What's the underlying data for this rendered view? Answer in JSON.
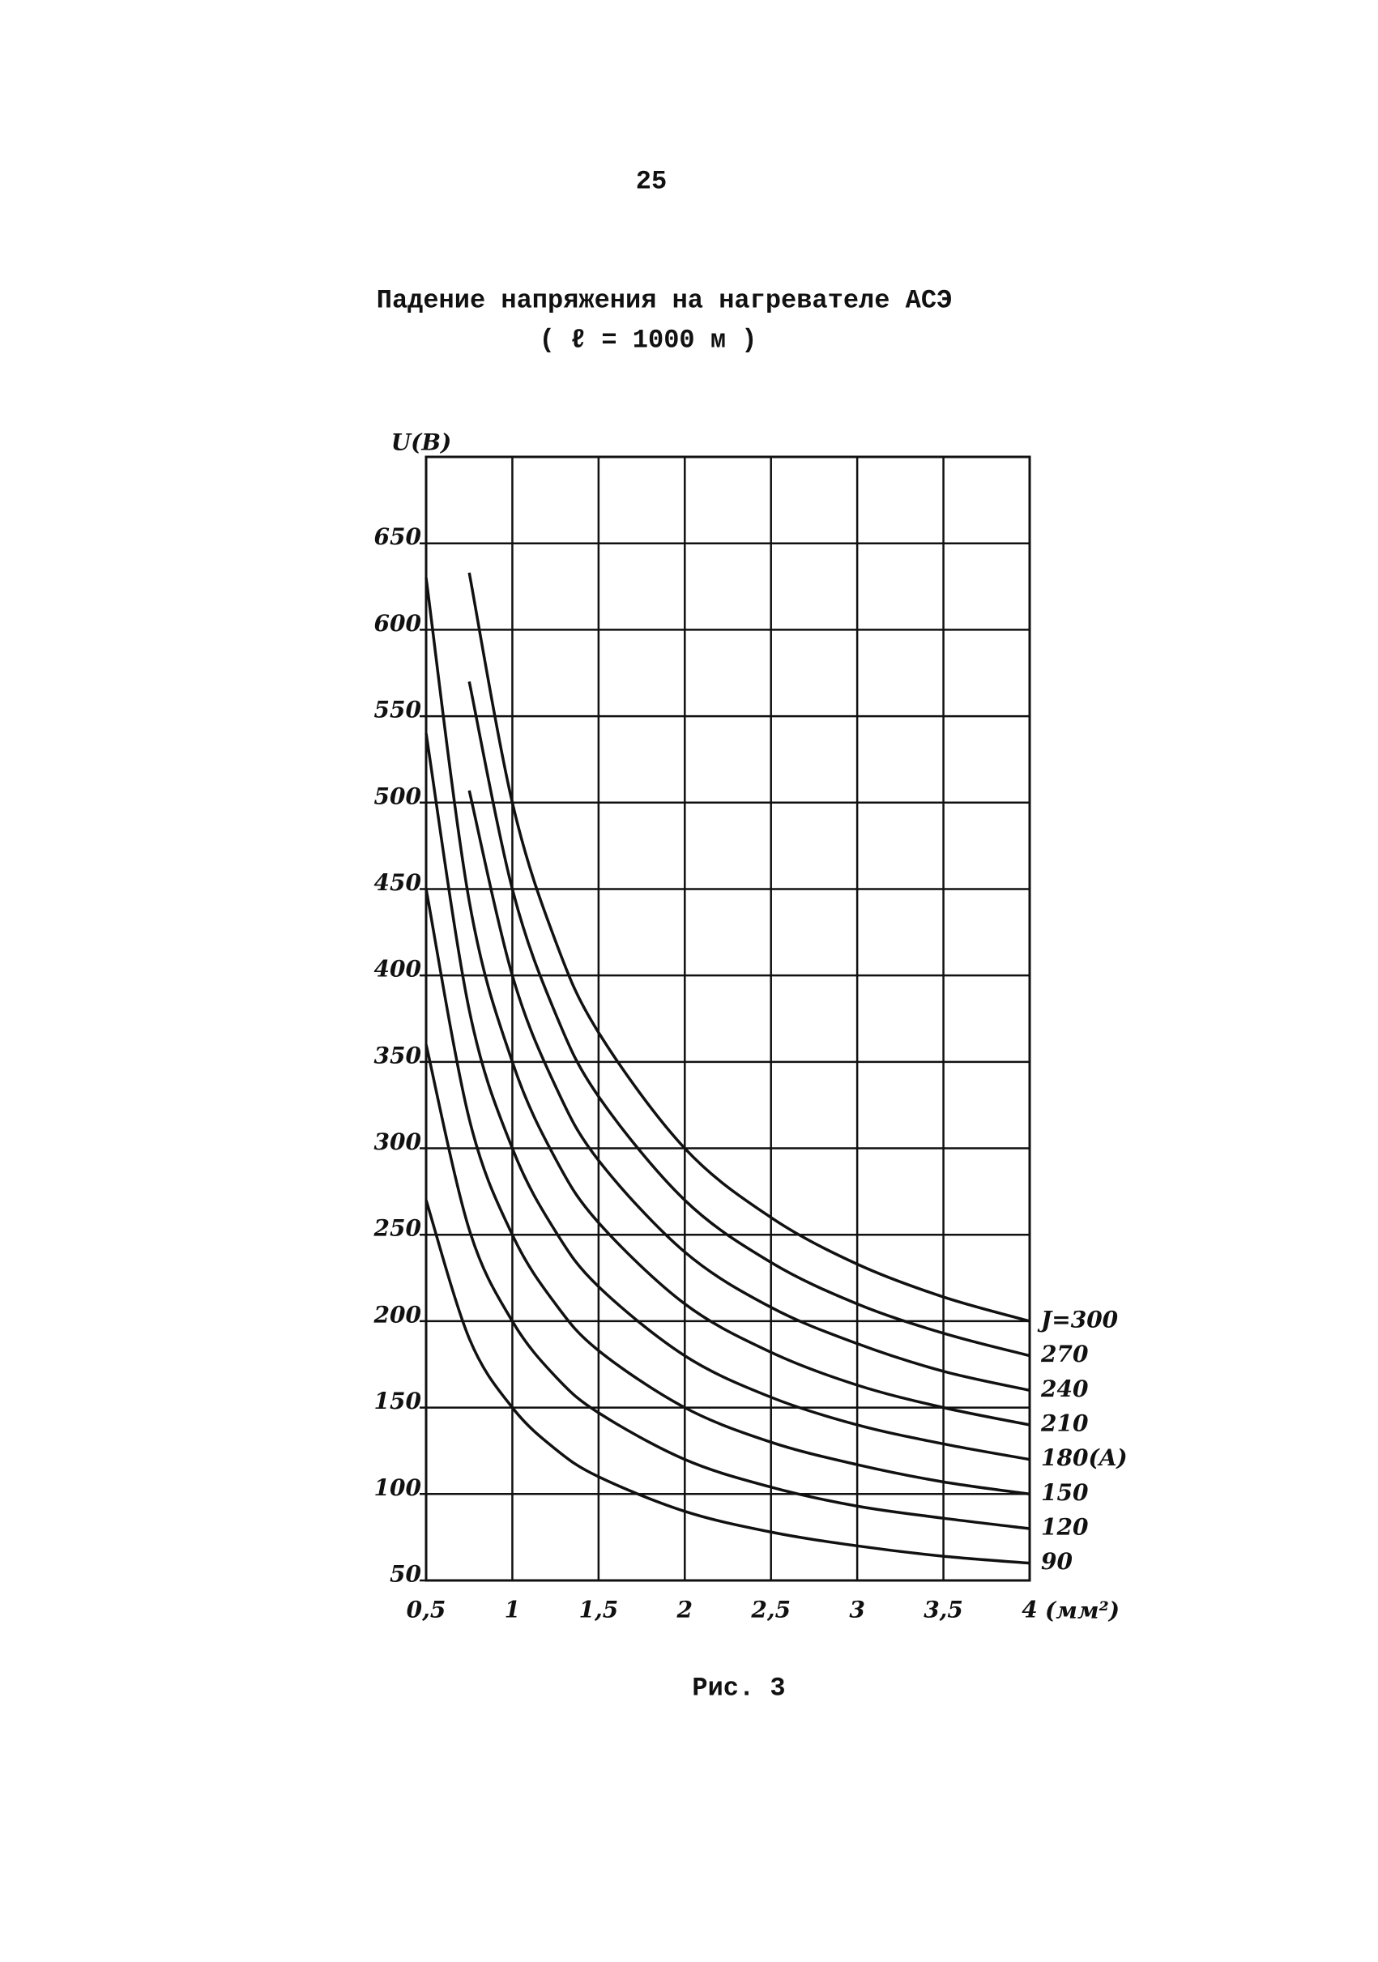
{
  "page_number": "25",
  "caption": "Рис. 3",
  "chart_data": {
    "type": "line",
    "title": "Падение напряжения на нагревателе АСЭ",
    "subtitle": "( ℓ = 1000 м )",
    "y_label": "U(B)",
    "x_label": "(мм²)",
    "x": [
      0.5,
      0.75,
      1,
      1.25,
      1.5,
      2,
      2.5,
      3,
      3.5,
      4
    ],
    "xlim": [
      0.5,
      4
    ],
    "ylim": [
      50,
      700
    ],
    "xticks": [
      {
        "value": 0.5,
        "label": "0,5"
      },
      1,
      {
        "value": 1.5,
        "label": "1,5"
      },
      2,
      {
        "value": 2.5,
        "label": "2,5"
      },
      3,
      {
        "value": 3.5,
        "label": "3,5"
      },
      4
    ],
    "yticks": [
      50,
      100,
      150,
      200,
      250,
      300,
      350,
      400,
      450,
      500,
      550,
      600,
      650
    ],
    "grid": true,
    "series": [
      {
        "name": "J=300",
        "color": "#111111",
        "values": [
          null,
          633,
          500,
          420,
          367,
          300,
          260,
          233,
          214,
          200
        ]
      },
      {
        "name": "270",
        "color": "#111111",
        "values": [
          null,
          570,
          450,
          378,
          330,
          270,
          234,
          210,
          193,
          180
        ]
      },
      {
        "name": "240",
        "color": "#111111",
        "values": [
          null,
          507,
          400,
          336,
          293,
          240,
          208,
          187,
          171,
          160
        ]
      },
      {
        "name": "210",
        "color": "#111111",
        "values": [
          630,
          443,
          350,
          294,
          257,
          210,
          182,
          163,
          150,
          140
        ]
      },
      {
        "name": "180(A)",
        "color": "#111111",
        "values": [
          540,
          380,
          300,
          252,
          220,
          180,
          156,
          140,
          129,
          120
        ]
      },
      {
        "name": "150",
        "color": "#111111",
        "values": [
          450,
          317,
          250,
          210,
          183,
          150,
          130,
          117,
          107,
          100
        ]
      },
      {
        "name": "120",
        "color": "#111111",
        "values": [
          360,
          253,
          200,
          168,
          147,
          120,
          104,
          93,
          86,
          80
        ]
      },
      {
        "name": "90",
        "color": "#111111",
        "values": [
          270,
          190,
          150,
          126,
          110,
          90,
          78,
          70,
          64,
          60
        ]
      }
    ]
  }
}
